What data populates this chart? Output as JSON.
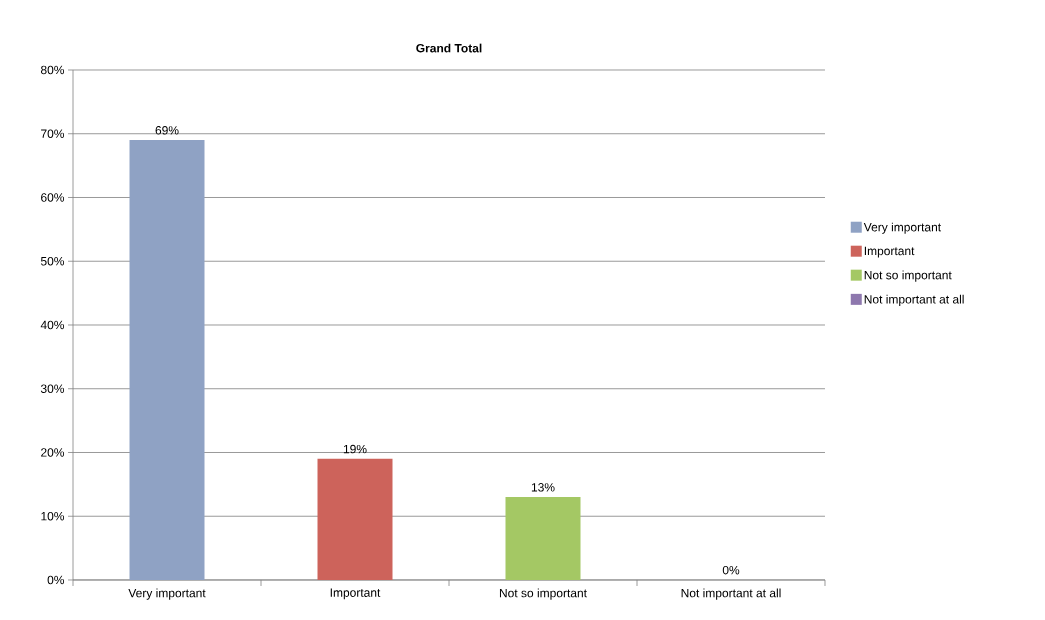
{
  "chart_data": {
    "type": "bar",
    "title": "Grand Total",
    "categories": [
      "Very important",
      "Important",
      "Not so important",
      "Not important at all"
    ],
    "series": [
      {
        "name": "Very important",
        "color": "#8fa2c4",
        "values": [
          69,
          null,
          null,
          null
        ],
        "value_labels": [
          "69%",
          null,
          null,
          null
        ]
      },
      {
        "name": "Important",
        "color": "#cd635b",
        "values": [
          null,
          19,
          null,
          null
        ],
        "value_labels": [
          null,
          "19%",
          null,
          null
        ]
      },
      {
        "name": "Not so important",
        "color": "#a4c864",
        "values": [
          null,
          null,
          13,
          null
        ],
        "value_labels": [
          null,
          null,
          "13%",
          null
        ]
      },
      {
        "name": "Not important at all",
        "color": "#8e78ae",
        "values": [
          null,
          null,
          null,
          0
        ],
        "value_labels": [
          null,
          null,
          null,
          "0%"
        ]
      }
    ],
    "ylim": [
      0,
      80
    ],
    "yticks": [
      {
        "value": 0,
        "label": "0%"
      },
      {
        "value": 10,
        "label": "10%"
      },
      {
        "value": 20,
        "label": "20%"
      },
      {
        "value": 30,
        "label": "30%"
      },
      {
        "value": 40,
        "label": "40%"
      },
      {
        "value": 50,
        "label": "50%"
      },
      {
        "value": 60,
        "label": "60%"
      },
      {
        "value": 70,
        "label": "70%"
      },
      {
        "value": 80,
        "label": "80%"
      }
    ],
    "grid": "y",
    "legend": "right"
  }
}
